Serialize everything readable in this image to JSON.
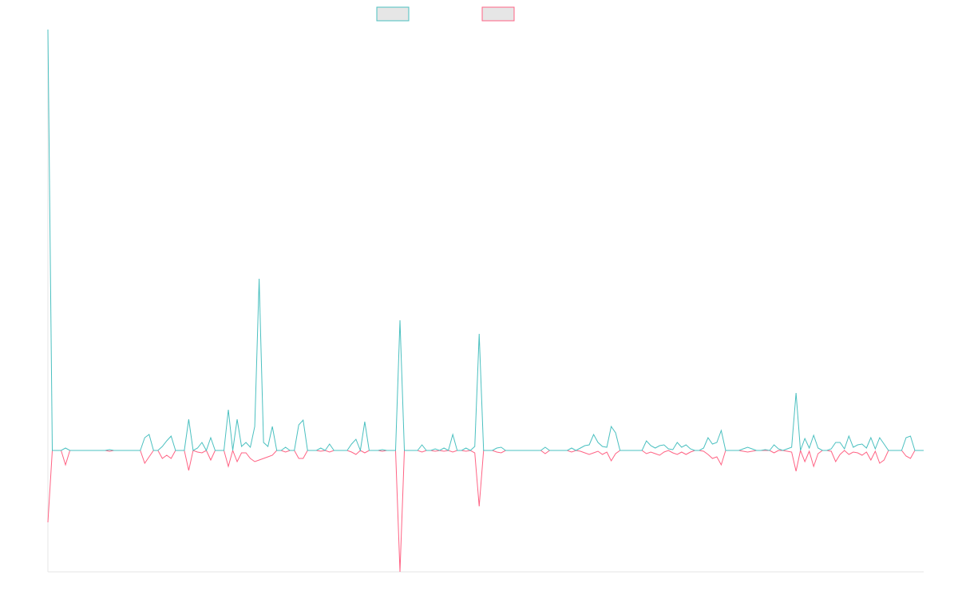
{
  "chart_data": {
    "type": "line",
    "series": [
      {
        "color": "#4bc0c0",
        "values": [
          527,
          0,
          0,
          0,
          3,
          0,
          0,
          0,
          0,
          0,
          0,
          0,
          0,
          0,
          1,
          0,
          0,
          0,
          0,
          0,
          0,
          0,
          16,
          20,
          0,
          0,
          5,
          12,
          18,
          0,
          0,
          0,
          39,
          0,
          3,
          10,
          0,
          16,
          0,
          0,
          0,
          51,
          0,
          39,
          5,
          10,
          4,
          30,
          215,
          10,
          5,
          30,
          0,
          0,
          4,
          0,
          0,
          32,
          38,
          0,
          0,
          0,
          3,
          0,
          8,
          0,
          0,
          0,
          0,
          8,
          14,
          0,
          36,
          0,
          0,
          0,
          1,
          0,
          0,
          0,
          163,
          0,
          0,
          0,
          0,
          7,
          0,
          0,
          2,
          0,
          3,
          0,
          20,
          0,
          0,
          3,
          0,
          5,
          146,
          0,
          0,
          0,
          3,
          4,
          0,
          0,
          0,
          0,
          0,
          0,
          0,
          0,
          0,
          4,
          0,
          0,
          0,
          0,
          0,
          3,
          0,
          3,
          6,
          7,
          20,
          10,
          5,
          4,
          30,
          22,
          0,
          0,
          0,
          0,
          0,
          0,
          12,
          6,
          3,
          6,
          7,
          2,
          1,
          10,
          4,
          7,
          2,
          0,
          0,
          3,
          16,
          8,
          10,
          25,
          0,
          0,
          0,
          0,
          2,
          4,
          2,
          0,
          0,
          1,
          0,
          7,
          2,
          0,
          2,
          4,
          72,
          0,
          15,
          3,
          19,
          3,
          0,
          0,
          2,
          10,
          10,
          2,
          18,
          4,
          7,
          8,
          3,
          16,
          2,
          16,
          8,
          0,
          0,
          0,
          0,
          16,
          18,
          0,
          0,
          0
        ]
      },
      {
        "color": "#ff6384",
        "values": [
          -90,
          0,
          0,
          0,
          -18,
          0,
          0,
          0,
          0,
          0,
          0,
          0,
          0,
          0,
          -1,
          0,
          0,
          0,
          0,
          0,
          0,
          0,
          -16,
          -8,
          0,
          0,
          -10,
          -6,
          -10,
          0,
          0,
          0,
          -25,
          0,
          -2,
          -3,
          0,
          -12,
          0,
          0,
          0,
          -20,
          0,
          -14,
          -3,
          -3,
          -10,
          -14,
          -12,
          -10,
          -8,
          -6,
          0,
          0,
          -2,
          0,
          0,
          -10,
          -10,
          0,
          0,
          0,
          -1,
          0,
          -2,
          0,
          0,
          0,
          0,
          -2,
          -5,
          0,
          -3,
          0,
          0,
          0,
          -1,
          0,
          0,
          0,
          -152,
          0,
          0,
          0,
          0,
          -2,
          0,
          0,
          -1,
          0,
          -1,
          0,
          -2,
          0,
          0,
          -1,
          0,
          -3,
          -70,
          0,
          0,
          0,
          -2,
          -3,
          0,
          0,
          0,
          0,
          0,
          0,
          0,
          0,
          0,
          -4,
          0,
          0,
          0,
          0,
          0,
          -2,
          0,
          -1,
          -3,
          -5,
          -3,
          -1,
          -5,
          -2,
          -13,
          -4,
          0,
          0,
          0,
          0,
          0,
          0,
          -4,
          -2,
          -4,
          -6,
          -2,
          0,
          -3,
          -5,
          -2,
          -5,
          -2,
          0,
          0,
          -1,
          -5,
          -10,
          -8,
          -18,
          0,
          0,
          0,
          0,
          -1,
          -2,
          -1,
          0,
          0,
          0,
          0,
          -3,
          0,
          0,
          -1,
          -2,
          -26,
          0,
          -14,
          -1,
          -20,
          -4,
          0,
          0,
          -1,
          -14,
          -5,
          0,
          -5,
          -2,
          -3,
          -6,
          -2,
          -12,
          -1,
          -16,
          -12,
          0,
          0,
          0,
          0,
          -7,
          -10,
          0,
          0,
          0
        ]
      }
    ],
    "ylim": [
      -152,
      527
    ],
    "legend": "top"
  }
}
